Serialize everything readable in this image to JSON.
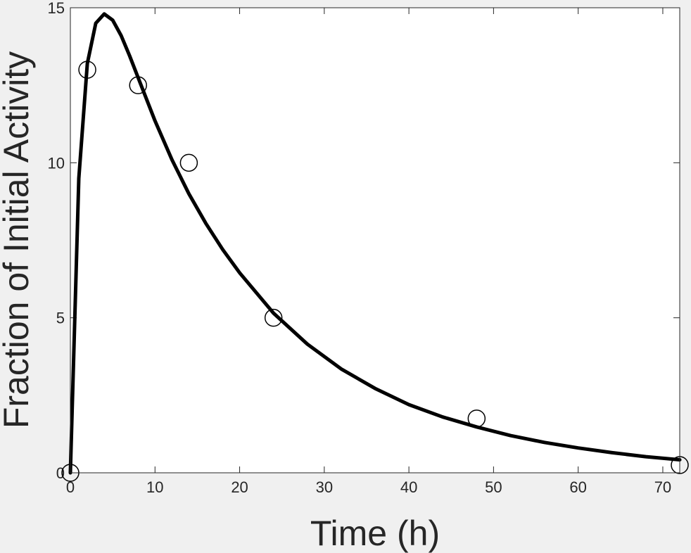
{
  "chart_data": {
    "type": "line",
    "xlabel": "Time (h)",
    "ylabel": "Fraction of Initial Activity",
    "xlim": [
      0,
      72
    ],
    "ylim": [
      0,
      15
    ],
    "xticks": [
      0,
      10,
      20,
      30,
      40,
      50,
      60,
      70
    ],
    "yticks": [
      0,
      5,
      10,
      15
    ],
    "grid": false,
    "colors": {
      "background": "#f0f0f0",
      "plot_area": "#ffffff",
      "axis": "#262626",
      "line": "#000000",
      "marker": "#000000"
    },
    "series": [
      {
        "kind": "markers",
        "marker": "open-circle",
        "x": [
          0,
          2,
          8,
          14,
          24,
          48,
          72
        ],
        "y": [
          0,
          13.0,
          12.5,
          10.0,
          5.0,
          1.75,
          0.25
        ]
      },
      {
        "kind": "line",
        "x": [
          0,
          1,
          2,
          3,
          4,
          5,
          6,
          7,
          8,
          10,
          12,
          14,
          16,
          18,
          20,
          24,
          28,
          32,
          36,
          40,
          44,
          48,
          52,
          56,
          60,
          64,
          68,
          72
        ],
        "y": [
          0,
          9.5,
          13.2,
          14.5,
          14.8,
          14.6,
          14.1,
          13.45,
          12.75,
          11.35,
          10.1,
          9.0,
          8.05,
          7.2,
          6.45,
          5.15,
          4.15,
          3.35,
          2.72,
          2.2,
          1.8,
          1.48,
          1.2,
          0.98,
          0.8,
          0.65,
          0.52,
          0.42
        ]
      }
    ]
  }
}
